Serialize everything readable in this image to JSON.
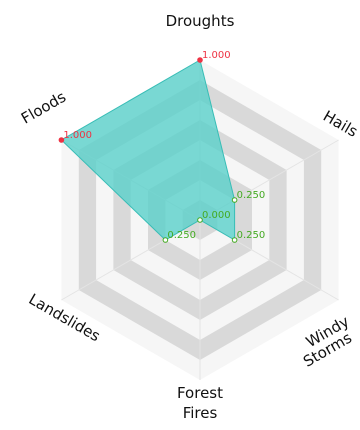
{
  "chart_data": {
    "type": "radar",
    "axes": [
      "Droughts",
      "Hails",
      "Windy Storms",
      "Forest Fires",
      "Landslides",
      "Floods"
    ],
    "values": [
      1.0,
      0.25,
      0.25,
      0.0,
      0.25,
      1.0
    ],
    "value_labels": [
      "1.000",
      "0.250",
      "0.250",
      "0.000",
      "0.250",
      "1.000"
    ],
    "range": [
      0,
      1
    ],
    "rings": 8,
    "grid": true,
    "legend": "none"
  },
  "colors": {
    "fill": "#56cfc9",
    "stroke": "#38bdb6",
    "ring_dark": "#d9d9d9",
    "ring_light": "#f6f6f6",
    "marker_high": "#ee3344",
    "marker_low": "#44aa22"
  }
}
